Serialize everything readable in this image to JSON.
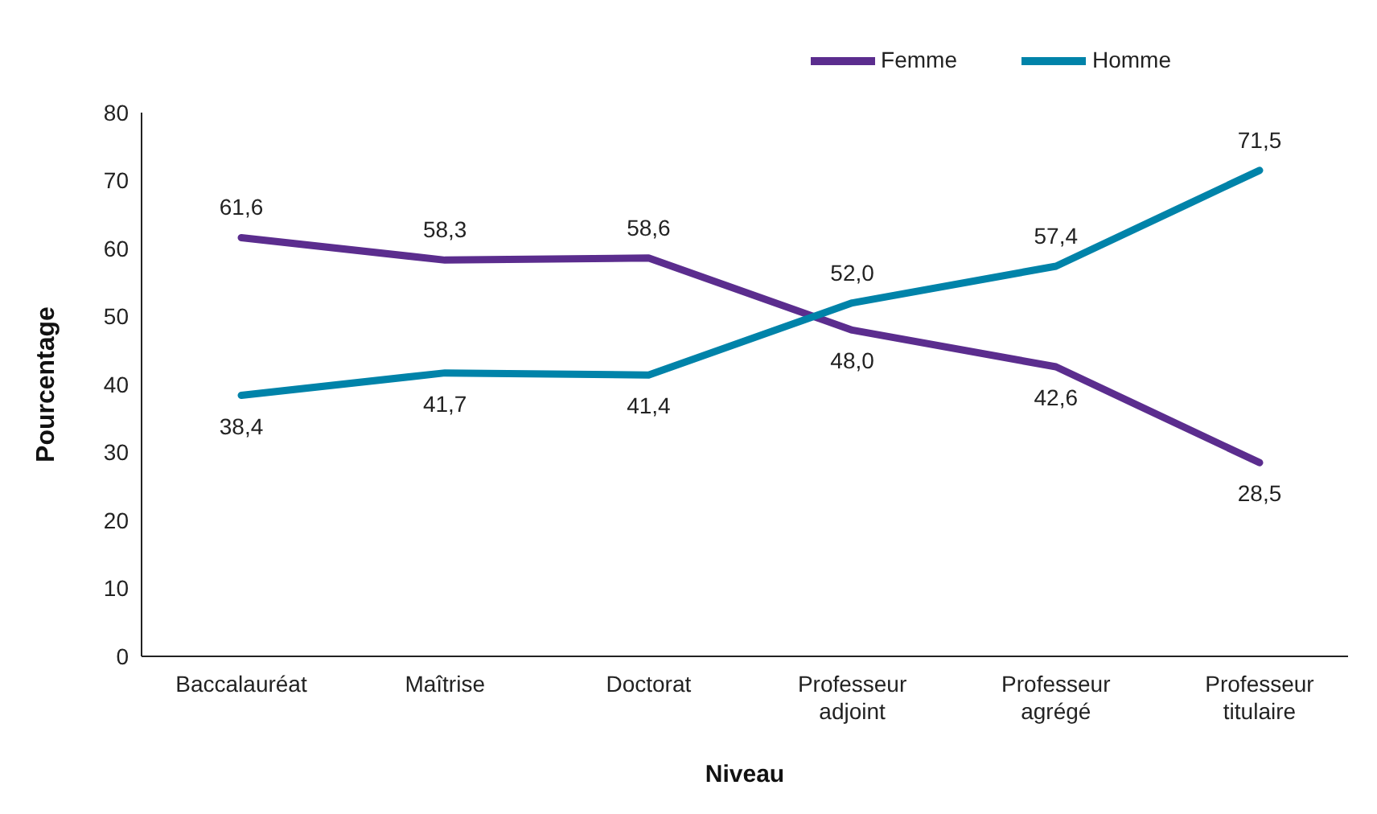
{
  "chart_data": {
    "type": "line",
    "xlabel": "Niveau",
    "ylabel": "Pourcentage",
    "categories": [
      "Baccalauréat",
      "Maîtrise",
      "Doctorat",
      "Professeur adjoint",
      "Professeur agrégé",
      "Professeur titulaire"
    ],
    "series": [
      {
        "name": "Femme",
        "color": "#5b2d8e",
        "values": [
          61.6,
          58.3,
          58.6,
          48.0,
          42.6,
          28.5
        ],
        "value_labels": [
          "61,6",
          "58,3",
          "58,6",
          "48,0",
          "42,6",
          "28,5"
        ]
      },
      {
        "name": "Homme",
        "color": "#0083a9",
        "values": [
          38.4,
          41.7,
          41.4,
          52.0,
          57.4,
          71.5
        ],
        "value_labels": [
          "38,4",
          "41,7",
          "41,4",
          "52,0",
          "57,4",
          "71,5"
        ]
      }
    ],
    "ylim": [
      0,
      80
    ],
    "yticks": [
      0,
      10,
      20,
      30,
      40,
      50,
      60,
      70,
      80
    ],
    "grid": false,
    "legend": "top right",
    "marker": "none",
    "line_style": "solid"
  }
}
